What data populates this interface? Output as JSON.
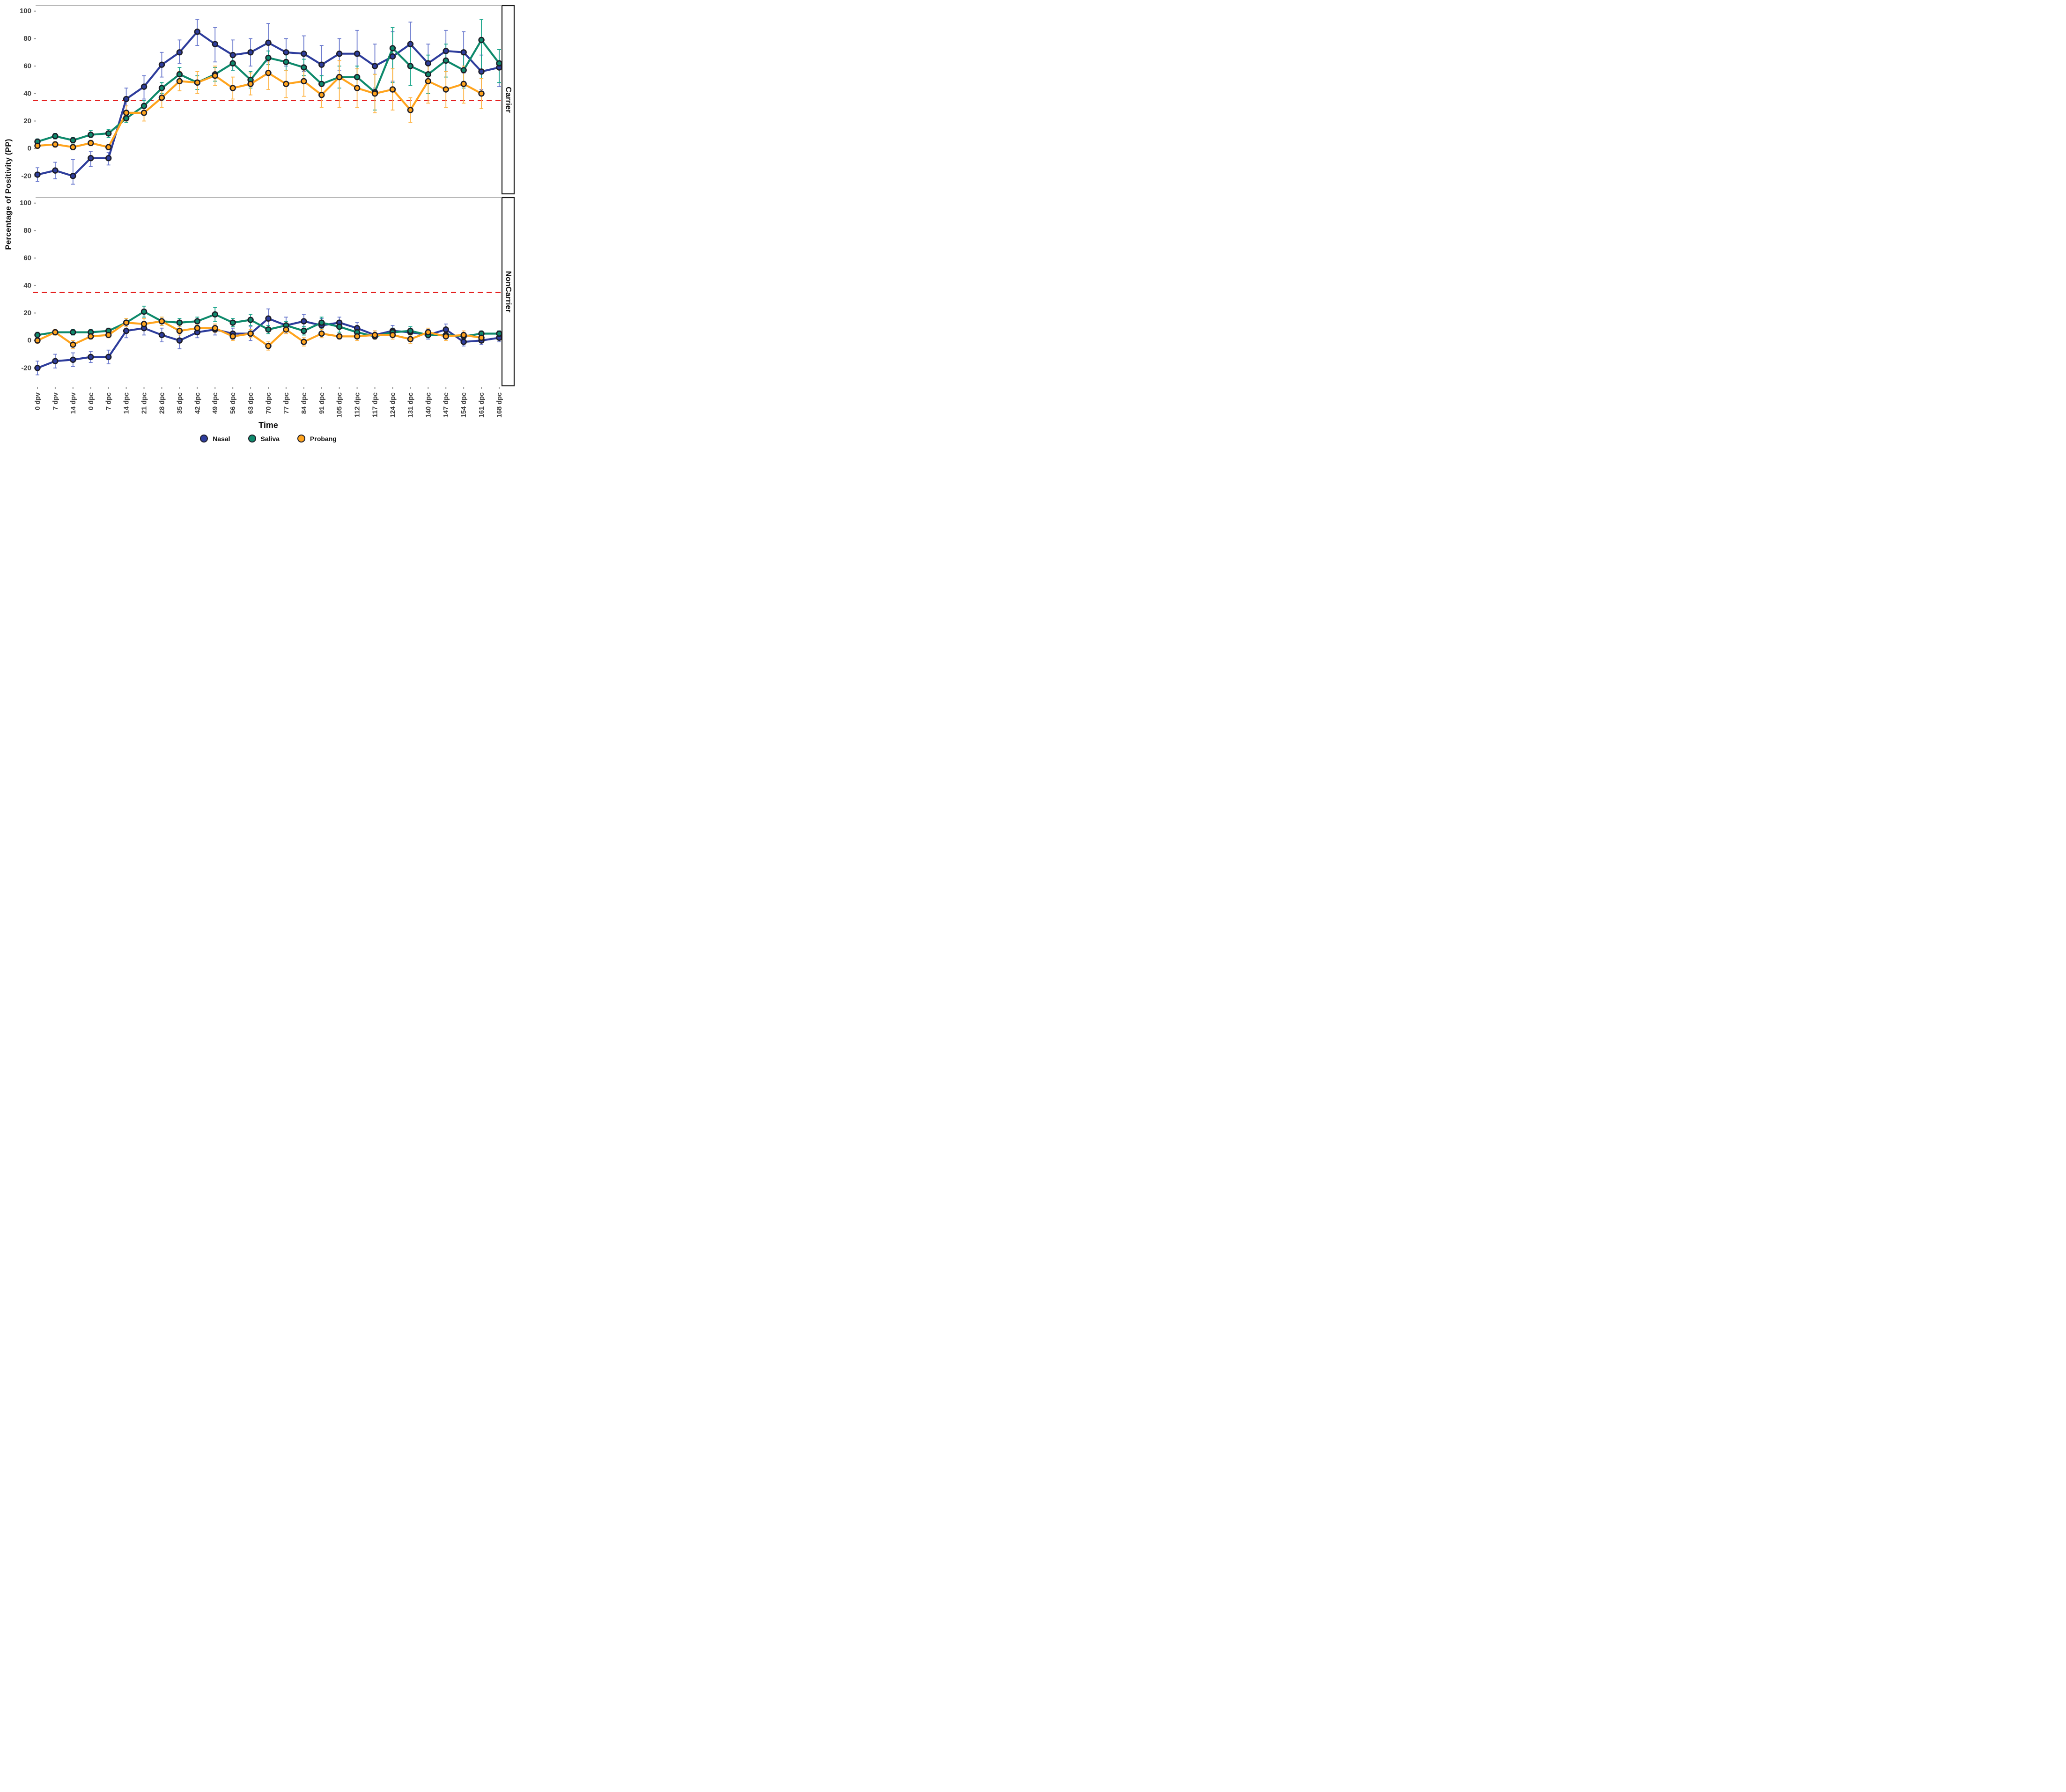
{
  "chart_data": {
    "type": "line",
    "xlabel": "Time",
    "ylabel": "Percentage of Positivity (PP)",
    "yticks": [
      100,
      80,
      60,
      40,
      20,
      0,
      -20
    ],
    "ylim": [
      -33,
      104
    ],
    "grid": false,
    "legend_position": "bottom",
    "threshold_line": {
      "value": 35,
      "style": "dashed",
      "color": "#e4201f"
    },
    "categories": [
      "0 dpv",
      "7 dpv",
      "14 dpv",
      "0 dpc",
      "7 dpc",
      "14 dpc",
      "21 dpc",
      "28 dpc",
      "35 dpc",
      "42 dpc",
      "49 dpc",
      "56 dpc",
      "63 dpc",
      "70 dpc",
      "77 dpc",
      "84 dpc",
      "91 dpc",
      "105 dpc",
      "112 dpc",
      "117 dpc",
      "124 dpc",
      "131 dpc",
      "140 dpc",
      "147 dpc",
      "154 dpc",
      "161 dpc",
      "168 dpc"
    ],
    "legend": [
      {
        "label": "Nasal",
        "color": "#2e3d9c"
      },
      {
        "label": "Saliva",
        "color": "#0f8a6c"
      },
      {
        "label": "Probang",
        "color": "#ffa41e"
      }
    ],
    "colors": {
      "marker_stroke": "#1d1d28",
      "panel_top_border": "#b8b8b8",
      "facet_strip_border": "#1a1a1a",
      "tick_text": "#3e3e3e",
      "error_bars": {
        "Nasal": "#6b7ace",
        "Saliva": "#19a58a",
        "Probang": "#ffb649"
      }
    },
    "facets": [
      {
        "label": "Carrier",
        "series": [
          {
            "name": "Nasal",
            "color": "#2e3d9c",
            "values": [
              -19,
              -16,
              -20,
              -7,
              -7,
              36,
              45,
              61,
              70,
              85,
              76,
              68,
              70,
              77,
              70,
              69,
              61,
              69,
              69,
              60,
              67,
              76,
              62,
              71,
              70,
              56,
              59
            ],
            "err_lo": [
              -24,
              -22,
              -26,
              -13,
              -12,
              26,
              36,
              52,
              62,
              75,
              63,
              57,
              60,
              63,
              60,
              56,
              53,
              57,
              52,
              44,
              49,
              60,
              48,
              56,
              55,
              43,
              45
            ],
            "err_hi": [
              -14,
              -10,
              -8,
              -2,
              -3,
              44,
              53,
              70,
              79,
              94,
              88,
              79,
              80,
              91,
              80,
              82,
              75,
              80,
              86,
              76,
              85,
              92,
              76,
              86,
              85,
              68,
              72
            ]
          },
          {
            "name": "Saliva",
            "color": "#0f8a6c",
            "values": [
              5,
              9,
              6,
              10,
              11,
              22,
              31,
              44,
              54,
              48,
              54,
              62,
              50,
              66,
              63,
              59,
              47,
              52,
              52,
              41,
              73,
              60,
              54,
              64,
              57,
              79,
              62
            ],
            "err_lo": [
              3,
              7,
              4,
              8,
              8,
              19,
              27,
              40,
              49,
              43,
              49,
              57,
              44,
              61,
              57,
              53,
              41,
              44,
              44,
              28,
              48,
              46,
              40,
              52,
              44,
              51,
              48
            ],
            "err_hi": [
              7,
              11,
              8,
              13,
              14,
              25,
              35,
              48,
              59,
              53,
              59,
              67,
              56,
              71,
              69,
              65,
              53,
              60,
              60,
              54,
              88,
              74,
              68,
              76,
              70,
              94,
              72
            ]
          },
          {
            "name": "Probang",
            "color": "#ffa41e",
            "values": [
              2,
              3,
              1,
              4,
              1,
              26,
              26,
              37,
              49,
              48,
              53,
              44,
              47,
              55,
              47,
              49,
              39,
              52,
              44,
              40,
              43,
              28,
              49,
              43,
              47,
              40,
              null
            ],
            "err_lo": [
              0,
              1,
              -1,
              2,
              -1,
              20,
              20,
              30,
              42,
              40,
              46,
              36,
              39,
              43,
              37,
              38,
              30,
              30,
              30,
              26,
              28,
              19,
              33,
              30,
              33,
              29,
              null
            ],
            "err_hi": [
              4,
              5,
              3,
              6,
              3,
              31,
              32,
              44,
              56,
              56,
              60,
              52,
              55,
              66,
              57,
              60,
              48,
              64,
              58,
              54,
              58,
              37,
              62,
              56,
              60,
              51,
              null
            ]
          }
        ]
      },
      {
        "label": "NonCarrier",
        "series": [
          {
            "name": "Nasal",
            "color": "#2e3d9c",
            "values": [
              -20,
              -15,
              -14,
              -12,
              -12,
              7,
              9,
              4,
              0,
              6,
              8,
              5,
              5,
              16,
              11,
              14,
              11,
              13,
              9,
              4,
              7,
              6,
              4,
              8,
              -1,
              0,
              2
            ],
            "err_lo": [
              -25,
              -20,
              -19,
              -16,
              -17,
              2,
              4,
              -1,
              -6,
              2,
              4,
              1,
              0,
              9,
              5,
              9,
              5,
              9,
              5,
              1,
              3,
              2,
              1,
              4,
              -4,
              -3,
              -1
            ],
            "err_hi": [
              -15,
              -10,
              -9,
              -8,
              -7,
              12,
              14,
              9,
              6,
              10,
              12,
              9,
              10,
              23,
              17,
              19,
              16,
              17,
              13,
              7,
              11,
              10,
              8,
              12,
              2,
              3,
              5
            ]
          },
          {
            "name": "Saliva",
            "color": "#0f8a6c",
            "values": [
              4,
              6,
              6,
              6,
              7,
              13,
              21,
              14,
              13,
              14,
              19,
              13,
              15,
              8,
              11,
              7,
              13,
              10,
              6,
              3,
              6,
              7,
              4,
              4,
              3,
              5,
              5
            ],
            "err_lo": [
              2,
              4,
              4,
              4,
              5,
              10,
              17,
              11,
              10,
              11,
              14,
              10,
              11,
              5,
              8,
              4,
              9,
              6,
              3,
              1,
              3,
              4,
              2,
              2,
              1,
              3,
              3
            ],
            "err_hi": [
              6,
              8,
              8,
              8,
              9,
              16,
              25,
              17,
              16,
              17,
              24,
              16,
              19,
              11,
              14,
              10,
              17,
              14,
              9,
              5,
              9,
              10,
              6,
              6,
              5,
              7,
              7
            ]
          },
          {
            "name": "Probang",
            "color": "#ffa41e",
            "values": [
              0,
              6,
              -3,
              3,
              4,
              13,
              12,
              14,
              7,
              9,
              9,
              3,
              5,
              -4,
              8,
              -1,
              5,
              3,
              3,
              4,
              4,
              1,
              6,
              3,
              4,
              2,
              null
            ],
            "err_lo": [
              -2,
              4,
              -6,
              1,
              2,
              10,
              8,
              11,
              4,
              6,
              6,
              0,
              2,
              -7,
              5,
              -4,
              2,
              1,
              0,
              1,
              1,
              -2,
              3,
              0,
              1,
              -1,
              null
            ],
            "err_hi": [
              2,
              8,
              0,
              5,
              6,
              16,
              16,
              17,
              10,
              12,
              12,
              6,
              8,
              -1,
              11,
              2,
              8,
              5,
              6,
              7,
              7,
              4,
              9,
              6,
              7,
              5,
              null
            ]
          }
        ]
      }
    ]
  }
}
